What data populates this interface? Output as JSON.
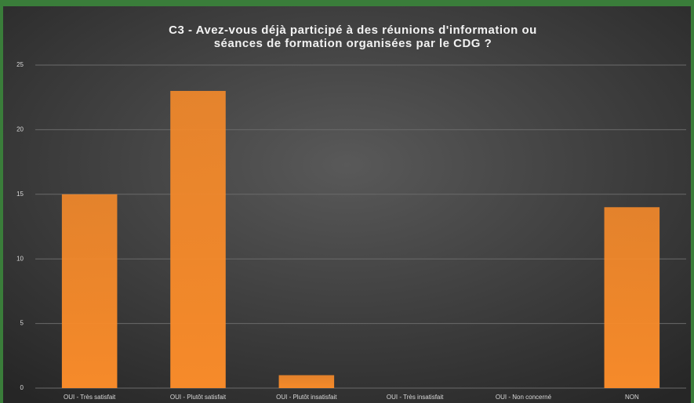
{
  "chart_data": {
    "type": "bar",
    "title": [
      "C3 - Avez-vous déjà participé à des réunions d'information ou",
      "séances de formation organisées par le CDG ?"
    ],
    "categories": [
      "OUI - Très satisfait",
      "OUI - Plutôt satisfait",
      "OUI - Plutôt insatisfait",
      "OUI - Très insatisfait",
      "OUI - Non concerné",
      "NON"
    ],
    "values": [
      15,
      23,
      1,
      0,
      0,
      14
    ],
    "color": "#f68a2a",
    "ylim": [
      0,
      25
    ],
    "yticks": [
      0,
      5,
      10,
      15,
      20,
      25
    ],
    "grid": true
  }
}
